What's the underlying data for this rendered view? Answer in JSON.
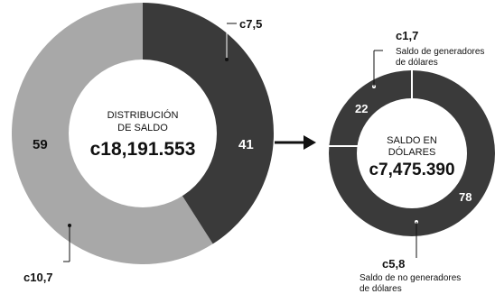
{
  "colors": {
    "dark": "#3a3a3a",
    "light": "#a8a8a8",
    "center": "#ffffff",
    "line": "#111111"
  },
  "chart_data": [
    {
      "type": "pie",
      "title_line1": "DISTRIBUCIÓN",
      "title_line2": "DE SALDO",
      "total": "c18,191.553",
      "slices": [
        {
          "label": "41",
          "value": 41,
          "amount": "c7,5",
          "color": "#3a3a3a"
        },
        {
          "label": "59",
          "value": 59,
          "amount": "c10,7",
          "color": "#a8a8a8"
        }
      ]
    },
    {
      "type": "pie",
      "title_line1": "SALDO EN",
      "title_line2": "DÓLARES",
      "total": "c7,475.390",
      "slices": [
        {
          "label": "22",
          "value": 22,
          "amount": "c1,7",
          "note_line1": "Saldo de generadores",
          "note_line2": "de dólares",
          "color": "#3a3a3a"
        },
        {
          "label": "78",
          "value": 78,
          "amount": "c5,8",
          "note_line1": "Saldo de no generadores",
          "note_line2": "de dólares",
          "color": "#3a3a3a"
        }
      ]
    }
  ]
}
